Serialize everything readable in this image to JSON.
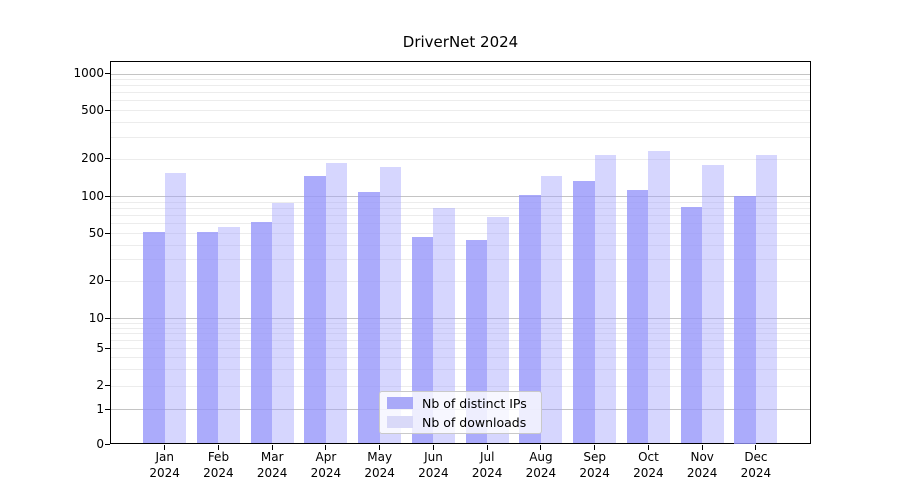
{
  "title": "DriverNet 2024",
  "chart_data": {
    "type": "bar",
    "title": "DriverNet 2024",
    "categories": [
      "Jan 2024",
      "Feb 2024",
      "Mar 2024",
      "Apr 2024",
      "May 2024",
      "Jun 2024",
      "Jul 2024",
      "Aug 2024",
      "Sep 2024",
      "Oct 2024",
      "Nov 2024",
      "Dec 2024"
    ],
    "series": [
      {
        "name": "Nb of distinct IPs",
        "color": "#a9a9f8",
        "values": [
          51,
          51,
          62,
          146,
          108,
          46,
          44,
          102,
          133,
          112,
          81,
          100
        ]
      },
      {
        "name": "Nb of downloads",
        "color": "#d9d9f8",
        "values": [
          152,
          56,
          88,
          185,
          172,
          80,
          67,
          144,
          212,
          230,
          177,
          214
        ]
      }
    ],
    "yscale": "symlog",
    "ylim": [
      0,
      1500
    ],
    "yticks": [
      1000,
      500,
      200,
      100,
      50,
      20,
      10,
      5,
      2,
      1,
      0
    ],
    "ytick_labels": [
      "1000",
      "500",
      "200",
      "100",
      "50",
      "20",
      "10",
      "5",
      "2",
      "1",
      "0"
    ],
    "grid": true,
    "legend_position": "lower center"
  },
  "colors": {
    "ips_bar": "#a9a9f8",
    "downloads_bar": "#d9d9f8",
    "major_grid": "#c4c4c4",
    "minor_grid": "#ececec"
  }
}
